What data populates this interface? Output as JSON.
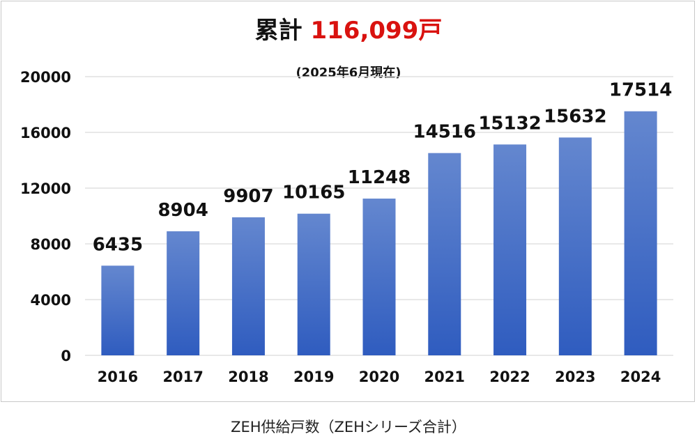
{
  "title": {
    "prefix": "累計 ",
    "total": "116,099戸"
  },
  "subtitle": "(2025年6月現在)",
  "caption": "ZEH供給戸数（ZEHシリーズ合計）",
  "colors": {
    "bar_top": "#6487cf",
    "bar_bottom": "#2f5cbf",
    "grid": "#d9d9d9",
    "total_text": "#d9120f"
  },
  "chart_data": {
    "type": "bar",
    "categories": [
      "2016",
      "2017",
      "2018",
      "2019",
      "2020",
      "2021",
      "2022",
      "2023",
      "2024"
    ],
    "values": [
      6435,
      8904,
      9907,
      10165,
      11248,
      14516,
      15132,
      15632,
      17514
    ],
    "ylim": [
      0,
      20000
    ],
    "yticks": [
      0,
      4000,
      8000,
      12000,
      16000,
      20000
    ],
    "grid": true,
    "legend": "none"
  }
}
